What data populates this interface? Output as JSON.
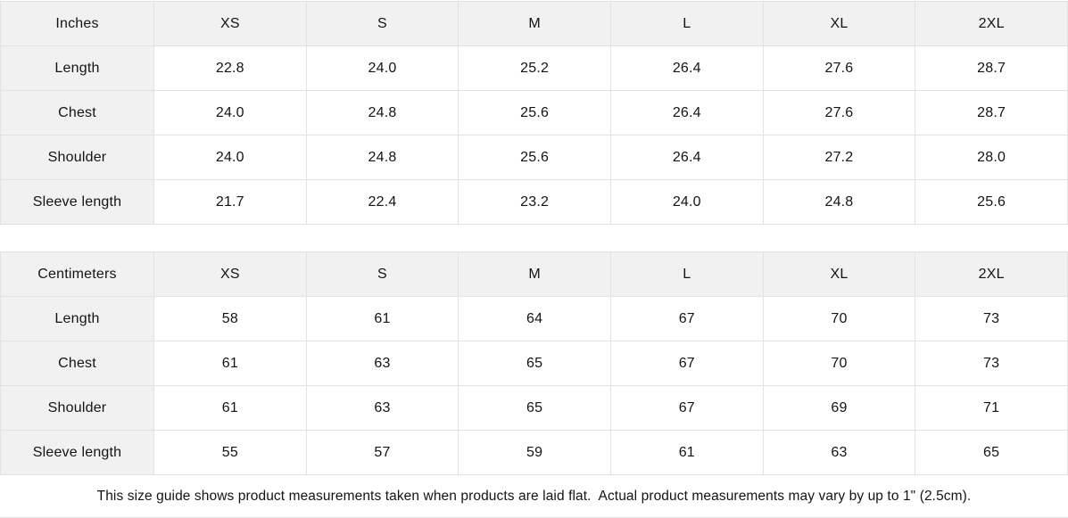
{
  "colors": {
    "header_cell_bg": "#f1f1f1",
    "value_cell_bg": "#ffffff",
    "border": "#e2e2e2",
    "text": "#141414"
  },
  "tables": [
    {
      "unit_label": "Inches",
      "columns": [
        "XS",
        "S",
        "M",
        "L",
        "XL",
        "2XL"
      ],
      "rows": [
        {
          "label": "Length",
          "values": [
            "22.8",
            "24.0",
            "25.2",
            "26.4",
            "27.6",
            "28.7"
          ]
        },
        {
          "label": "Chest",
          "values": [
            "24.0",
            "24.8",
            "25.6",
            "26.4",
            "27.6",
            "28.7"
          ]
        },
        {
          "label": "Shoulder",
          "values": [
            "24.0",
            "24.8",
            "25.6",
            "26.4",
            "27.2",
            "28.0"
          ]
        },
        {
          "label": "Sleeve length",
          "values": [
            "21.7",
            "22.4",
            "23.2",
            "24.0",
            "24.8",
            "25.6"
          ]
        }
      ]
    },
    {
      "unit_label": "Centimeters",
      "columns": [
        "XS",
        "S",
        "M",
        "L",
        "XL",
        "2XL"
      ],
      "rows": [
        {
          "label": "Length",
          "values": [
            "58",
            "61",
            "64",
            "67",
            "70",
            "73"
          ]
        },
        {
          "label": "Chest",
          "values": [
            "61",
            "63",
            "65",
            "67",
            "70",
            "73"
          ]
        },
        {
          "label": "Shoulder",
          "values": [
            "61",
            "63",
            "65",
            "67",
            "69",
            "71"
          ]
        },
        {
          "label": "Sleeve length",
          "values": [
            "55",
            "57",
            "59",
            "61",
            "63",
            "65"
          ]
        }
      ]
    }
  ],
  "footnote": "This size guide shows product measurements taken when products are laid flat.  Actual product measurements may vary by up to 1\" (2.5cm)."
}
